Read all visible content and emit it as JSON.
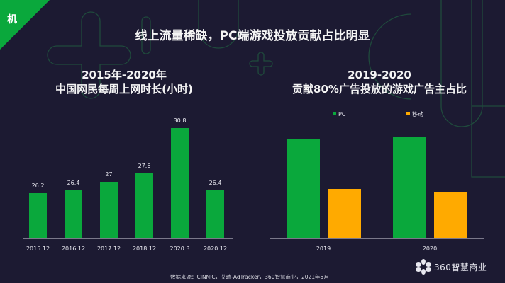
{
  "slide": {
    "corner_label": "机",
    "title": "线上流量稀缺，PC端游戏投放贡献占比明显",
    "source": "数据来源：CINNIC，艾瑞-AdTracker，360智慧商业，2021年5月",
    "logo_text": "360智慧商业"
  },
  "colors": {
    "background": "#1c1a32",
    "green": "#0aa83c",
    "orange": "#ffaa00",
    "decor_stroke": "#1f4a3c"
  },
  "chart_data": [
    {
      "type": "bar",
      "title": "2015年-2020年",
      "subtitle": "中国网民每周上网时长(小时)",
      "categories": [
        "2015.12",
        "2016.12",
        "2017.12",
        "2018.12",
        "2020.3",
        "2020.12"
      ],
      "values": [
        26.2,
        26.4,
        27,
        27.6,
        30.8,
        26.4
      ],
      "data_labels": [
        "26.2",
        "26.4",
        "27",
        "27.6",
        "30.8",
        "26.4"
      ],
      "ylim": [
        23,
        31.5
      ],
      "grid": false,
      "color": "#0aa83c"
    },
    {
      "type": "bar",
      "title": "2019-2020",
      "subtitle": "贡献80%广告投放的游戏广告主占比",
      "categories": [
        "2019",
        "2020"
      ],
      "series": [
        {
          "name": "PC",
          "values": [
            70,
            72
          ],
          "color": "#0aa83c"
        },
        {
          "name": "移动",
          "values": [
            35,
            33
          ],
          "color": "#ffaa00"
        }
      ],
      "ylim": [
        0,
        100
      ],
      "legend": "top",
      "grid": false
    }
  ]
}
